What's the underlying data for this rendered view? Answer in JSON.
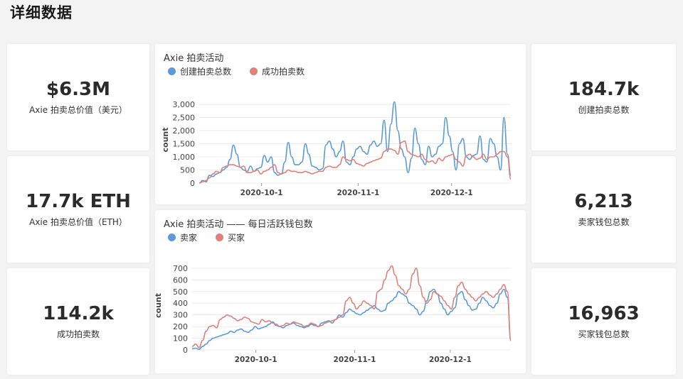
{
  "page_title": "详细数据",
  "stats": {
    "total_usd": {
      "value": "$6.3M",
      "label": "Axie 拍卖总价值（美元）"
    },
    "total_eth": {
      "value": "17.7k ETH",
      "label": "Axie 拍卖总价值（ETH）"
    },
    "success_count": {
      "value": "114.2k",
      "label": "成功拍卖数"
    },
    "created_count": {
      "value": "184.7k",
      "label": "创建拍卖总数"
    },
    "seller_wallets": {
      "value": "6,213",
      "label": "卖家钱包总数"
    },
    "buyer_wallets": {
      "value": "16,963",
      "label": "买家钱包总数"
    }
  },
  "colors": {
    "blue": "#5b9bd8",
    "red": "#e0807a"
  },
  "chart_data": [
    {
      "type": "line",
      "title": "Axie 拍卖活动",
      "ylabel": "count",
      "xticks": [
        "2020-10-1",
        "2020-11-1",
        "2020-12-1"
      ],
      "yticks": [
        "0",
        "500",
        "1,000",
        "1,500",
        "2,000",
        "2,500",
        "3,000"
      ],
      "ylim": [
        0,
        3300
      ],
      "x_start": "2020-9-11",
      "x_end": "2020-12-20",
      "series": [
        {
          "name": "创建拍卖总数",
          "color": "#5b9bd8",
          "values": [
            0,
            100,
            50,
            300,
            250,
            350,
            400,
            500,
            600,
            900,
            1450,
            1100,
            600,
            500,
            450,
            650,
            450,
            550,
            600,
            1050,
            800,
            1000,
            400,
            300,
            350,
            800,
            1550,
            1000,
            700,
            700,
            800,
            1500,
            1100,
            650,
            600,
            500,
            550,
            1450,
            1600,
            1300,
            1000,
            1200,
            1600,
            800,
            700,
            1000,
            1300,
            1400,
            1200,
            1100,
            1450,
            1600,
            1400,
            1500,
            2400,
            1200,
            2250,
            3100,
            2000,
            1300,
            1000,
            400,
            950,
            2100,
            1500,
            900,
            700,
            1400,
            1000,
            1100,
            1400,
            1500,
            2500,
            1800,
            1200,
            500,
            1500,
            1700,
            1000,
            900,
            1050,
            1100,
            1800,
            900,
            800,
            1700,
            1500,
            1000,
            500,
            2500,
            1100,
            300
          ]
        },
        {
          "name": "成功拍卖数",
          "color": "#e0807a",
          "values": [
            0,
            50,
            100,
            200,
            350,
            450,
            400,
            600,
            650,
            700,
            700,
            650,
            600,
            650,
            400,
            400,
            450,
            500,
            350,
            450,
            500,
            600,
            700,
            400,
            350,
            400,
            500,
            450,
            450,
            400,
            400,
            450,
            400,
            350,
            400,
            450,
            450,
            600,
            650,
            600,
            600,
            700,
            1000,
            900,
            850,
            900,
            750,
            700,
            650,
            750,
            800,
            850,
            900,
            950,
            1200,
            1300,
            1300,
            1250,
            1100,
            1550,
            1600,
            1200,
            1100,
            1050,
            1000,
            1100,
            900,
            800,
            850,
            750,
            950,
            850,
            1000,
            1050,
            1100,
            900,
            800,
            650,
            1050,
            1100,
            1000,
            900,
            950,
            1100,
            900,
            1000,
            1000,
            1100,
            1200,
            1200,
            1000,
            150
          ]
        }
      ]
    },
    {
      "type": "line",
      "title": "Axie 拍卖活动 —— 每日活跃钱包数",
      "ylabel": "count",
      "xticks": [
        "2020-10-1",
        "2020-11-1",
        "2020-12-1"
      ],
      "yticks": [
        "0",
        "100",
        "200",
        "300",
        "400",
        "500",
        "600",
        "700"
      ],
      "ylim": [
        0,
        760
      ],
      "x_start": "2020-9-11",
      "x_end": "2020-12-20",
      "series": [
        {
          "name": "卖家",
          "color": "#5b9bd8",
          "values": [
            10,
            15,
            5,
            30,
            50,
            80,
            100,
            110,
            120,
            130,
            140,
            160,
            150,
            170,
            180,
            160,
            150,
            170,
            200,
            180,
            190,
            200,
            220,
            240,
            210,
            200,
            190,
            210,
            220,
            230,
            210,
            200,
            190,
            200,
            220,
            210,
            200,
            230,
            240,
            250,
            230,
            260,
            300,
            280,
            320,
            350,
            330,
            310,
            300,
            320,
            340,
            360,
            380,
            350,
            330,
            340,
            400,
            420,
            450,
            500,
            480,
            460,
            400,
            380,
            350,
            300,
            330,
            420,
            500,
            520,
            480,
            400,
            350,
            300,
            330,
            360,
            480,
            500,
            430,
            380,
            340,
            350,
            400,
            450,
            420,
            380,
            360,
            400,
            480,
            520,
            450,
            80
          ]
        },
        {
          "name": "买家",
          "color": "#e0807a",
          "values": [
            30,
            50,
            20,
            80,
            160,
            200,
            210,
            190,
            260,
            280,
            300,
            290,
            270,
            250,
            260,
            280,
            270,
            240,
            230,
            220,
            260,
            240,
            250,
            230,
            220,
            200,
            210,
            230,
            220,
            240,
            230,
            220,
            200,
            210,
            230,
            220,
            200,
            210,
            230,
            240,
            250,
            260,
            280,
            300,
            420,
            450,
            400,
            350,
            380,
            420,
            400,
            380,
            350,
            500,
            520,
            600,
            680,
            720,
            640,
            550,
            520,
            480,
            520,
            650,
            700,
            550,
            450,
            400,
            430,
            500,
            480,
            460,
            420,
            380,
            350,
            450,
            550,
            580,
            520,
            480,
            450,
            420,
            450,
            480,
            500,
            470,
            450,
            480,
            520,
            560,
            500,
            80
          ]
        }
      ]
    }
  ]
}
